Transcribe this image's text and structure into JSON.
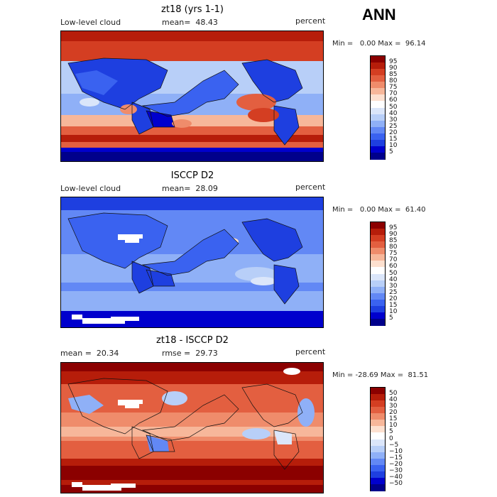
{
  "season": "ANN",
  "palette_pos": [
    "#00008b",
    "#0000cd",
    "#1e3fe0",
    "#3a62f0",
    "#6288f5",
    "#8fb0f7",
    "#b8cff8",
    "#dbe6fa",
    "#ffffff",
    "#fde0cf",
    "#f7b79a",
    "#ef8c6b",
    "#e35f40",
    "#d43e22",
    "#b61d0a",
    "#8b0000"
  ],
  "palette_diff": [
    "#00008b",
    "#0000cd",
    "#1e3fe0",
    "#3a62f0",
    "#6288f5",
    "#8fb0f7",
    "#b8cff8",
    "#dbe6fa",
    "#ffffff",
    "#fde0cf",
    "#f7b79a",
    "#ef8c6b",
    "#e35f40",
    "#d43e22",
    "#b61d0a",
    "#8b0000"
  ],
  "panels": [
    {
      "title": "zt18 (yrs 1-1)",
      "left_label": "Low-level cloud",
      "center_label": "mean=  48.43",
      "units": "percent",
      "minmax": "Min =   0.00 Max =  96.14",
      "ticks": [
        "95",
        "90",
        "85",
        "80",
        "75",
        "70",
        "60",
        "50",
        "40",
        "30",
        "25",
        "20",
        "15",
        "10",
        "5"
      ]
    },
    {
      "title": "ISCCP D2",
      "left_label": "Low-level cloud",
      "center_label": "mean=  28.09",
      "units": "percent",
      "minmax": "Min =   0.00 Max =  61.40",
      "ticks": [
        "95",
        "90",
        "85",
        "80",
        "75",
        "70",
        "60",
        "50",
        "40",
        "30",
        "25",
        "20",
        "15",
        "10",
        "5"
      ]
    },
    {
      "title": "zt18 - ISCCP D2",
      "left_label": "mean =  20.34",
      "center_label": "rmse =  29.73",
      "units": "percent",
      "minmax": "Min = -28.69 Max =  81.51",
      "ticks": [
        "50",
        "40",
        "30",
        "20",
        "15",
        "10",
        "5",
        "0",
        "−5",
        "−10",
        "−15",
        "−20",
        "−30",
        "−40",
        "−50"
      ]
    }
  ]
}
